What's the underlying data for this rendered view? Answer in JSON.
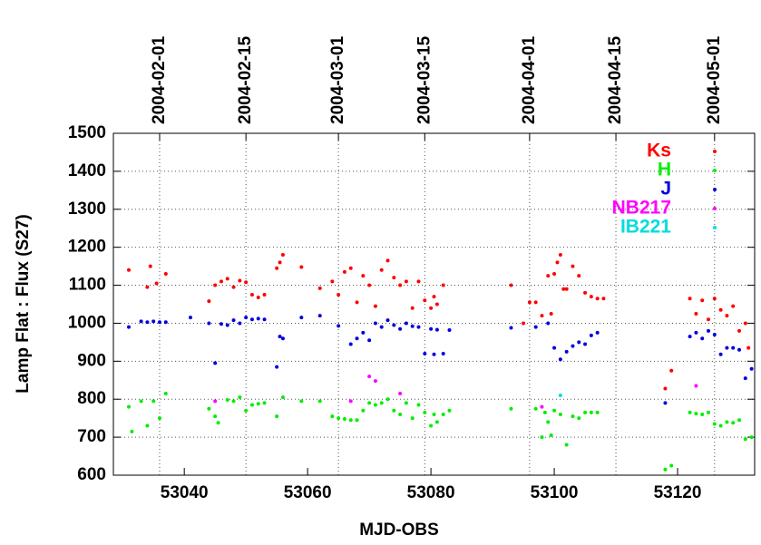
{
  "chart_data": {
    "type": "scatter",
    "xlabel": "MJD-OBS",
    "ylabel": "Lamp Flat : Flux (S27)",
    "xlim": [
      53028.5,
      53132.5
    ],
    "xticks": [
      53040,
      53060,
      53080,
      53100,
      53120
    ],
    "x2ticks": [
      {
        "value": 53036,
        "label": "2004-02-01"
      },
      {
        "value": 53050,
        "label": "2004-02-15"
      },
      {
        "value": 53065,
        "label": "2004-03-01"
      },
      {
        "value": 53079,
        "label": "2004-03-15"
      },
      {
        "value": 53096,
        "label": "2004-04-01"
      },
      {
        "value": 53110,
        "label": "2004-04-15"
      },
      {
        "value": 53126,
        "label": "2004-05-01"
      }
    ],
    "ylim": [
      600,
      1500
    ],
    "yticks": [
      600,
      700,
      800,
      900,
      1000,
      1100,
      1200,
      1300,
      1400,
      1500
    ],
    "grid": true,
    "legend": "upper right",
    "series": [
      {
        "name": "Ks",
        "color": "#ff0000",
        "x": [
          53031,
          53034,
          53034.5,
          53035.5,
          53037,
          53044,
          53045,
          53046,
          53047,
          53048,
          53049,
          53050,
          53051,
          53052,
          53053,
          53055,
          53055.5,
          53056,
          53059,
          53062,
          53064,
          53065,
          53066,
          53067,
          53068,
          53069,
          53070,
          53071,
          53072,
          53073,
          53074,
          53075,
          53076,
          53077,
          53078,
          53079,
          53080,
          53080.5,
          53081,
          53082,
          53093,
          53095,
          53096,
          53097,
          53098,
          53099,
          53099.5,
          53100,
          53100.5,
          53101,
          53101.5,
          53102,
          53103,
          53104,
          53105,
          53106,
          53107,
          53108,
          53118,
          53119,
          53122,
          53123,
          53124,
          53125,
          53126,
          53127,
          53128,
          53129,
          53130,
          53131,
          53131.5
        ],
        "values": [
          1140,
          1095,
          1150,
          1105,
          1130,
          1058,
          1100,
          1110,
          1117,
          1095,
          1112,
          1108,
          1075,
          1068,
          1075,
          1145,
          1160,
          1180,
          1148,
          1092,
          1110,
          1075,
          1135,
          1145,
          1055,
          1125,
          1100,
          1045,
          1140,
          1165,
          1120,
          1100,
          1110,
          1040,
          1110,
          1060,
          1040,
          1070,
          1050,
          1100,
          1100,
          1000,
          1055,
          1055,
          1020,
          1125,
          1025,
          1130,
          1160,
          1180,
          1090,
          1090,
          1150,
          1125,
          1080,
          1070,
          1065,
          1065,
          828,
          875,
          1065,
          1025,
          1060,
          1010,
          1065,
          1035,
          1020,
          1045,
          980,
          1000,
          935
        ]
      },
      {
        "name": "H",
        "color": "#00ee00",
        "x": [
          53031,
          53031.5,
          53033,
          53034,
          53035,
          53036,
          53037,
          53044,
          53045,
          53045.5,
          53047,
          53048,
          53049,
          53050,
          53051,
          53052,
          53053,
          53055,
          53056,
          53059,
          53062,
          53064,
          53065,
          53066,
          53067,
          53068,
          53069,
          53070,
          53071,
          53072,
          53073,
          53074,
          53075,
          53076,
          53077,
          53078,
          53079,
          53080,
          53080.5,
          53081,
          53082,
          53083,
          53093,
          53097,
          53098,
          53098.5,
          53099,
          53099.5,
          53100,
          53101,
          53102,
          53103,
          53104,
          53105,
          53106,
          53107,
          53118,
          53119,
          53122,
          53123,
          53124,
          53125,
          53126,
          53127,
          53128,
          53129,
          53130,
          53131,
          53132
        ],
        "values": [
          780,
          715,
          795,
          730,
          795,
          750,
          815,
          775,
          755,
          738,
          798,
          795,
          805,
          770,
          785,
          788,
          790,
          755,
          805,
          795,
          795,
          755,
          750,
          748,
          745,
          745,
          770,
          790,
          785,
          790,
          800,
          770,
          760,
          790,
          750,
          785,
          765,
          730,
          760,
          740,
          760,
          770,
          775,
          775,
          700,
          765,
          740,
          705,
          770,
          760,
          680,
          755,
          750,
          765,
          765,
          765,
          615,
          625,
          765,
          762,
          760,
          765,
          735,
          730,
          740,
          738,
          745,
          695,
          700
        ]
      },
      {
        "name": "J",
        "color": "#0000dd",
        "x": [
          53031,
          53033,
          53034,
          53035,
          53036,
          53037,
          53041,
          53044,
          53045,
          53046,
          53047,
          53048,
          53049,
          53050,
          53051,
          53052,
          53053,
          53055,
          53055.5,
          53056,
          53059,
          53062,
          53065,
          53067,
          53068,
          53069,
          53070,
          53071,
          53072,
          53073,
          53074,
          53075,
          53076,
          53077,
          53078,
          53079,
          53080,
          53080.5,
          53081,
          53082,
          53083,
          53093,
          53097,
          53099,
          53100,
          53101,
          53102,
          53103,
          53104,
          53105,
          53106,
          53107,
          53118,
          53122,
          53123,
          53124,
          53125,
          53126,
          53127,
          53128,
          53129,
          53130,
          53131,
          53132
        ],
        "values": [
          990,
          1005,
          1003,
          1005,
          1003,
          1003,
          1015,
          1000,
          895,
          998,
          995,
          1008,
          1000,
          1015,
          1010,
          1012,
          1010,
          885,
          965,
          960,
          1015,
          1020,
          993,
          945,
          960,
          975,
          955,
          1000,
          990,
          1008,
          995,
          985,
          1000,
          992,
          990,
          920,
          985,
          918,
          983,
          920,
          982,
          988,
          990,
          1000,
          935,
          905,
          925,
          940,
          950,
          945,
          968,
          975,
          790,
          965,
          975,
          960,
          980,
          970,
          918,
          935,
          935,
          930,
          855,
          880
        ]
      },
      {
        "name": "NB217",
        "color": "#ff00ff",
        "x": [
          53045,
          53067,
          53070,
          53071,
          53075,
          53098,
          53123
        ],
        "values": [
          795,
          795,
          860,
          848,
          815,
          780,
          835
        ]
      },
      {
        "name": "IB221",
        "color": "#00dddd",
        "x": [
          53101
        ],
        "values": [
          810
        ]
      }
    ]
  }
}
